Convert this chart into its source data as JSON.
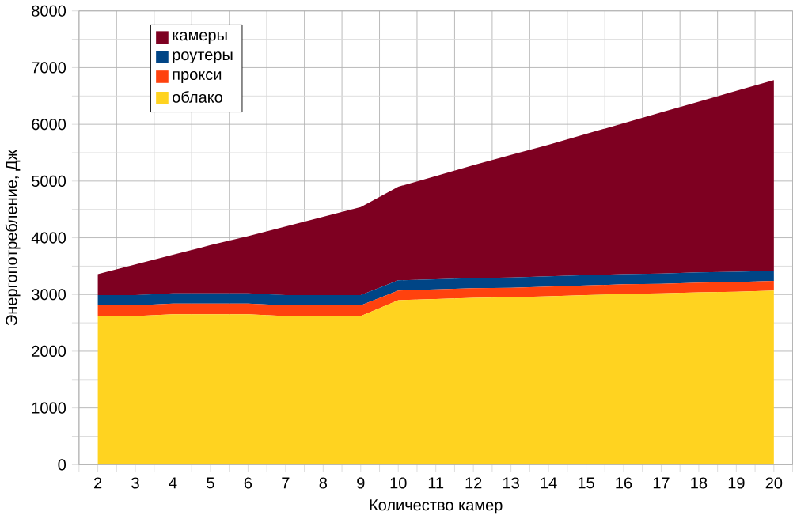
{
  "chart_data": {
    "type": "area",
    "stacked": true,
    "xlabel": "Количество камер",
    "ylabel": "Энергопотребление, Дж",
    "categories": [
      "2",
      "3",
      "4",
      "5",
      "6",
      "7",
      "8",
      "9",
      "10",
      "11",
      "12",
      "13",
      "14",
      "15",
      "16",
      "17",
      "18",
      "19",
      "20"
    ],
    "series": [
      {
        "name": "облако",
        "color": "#ffd320",
        "values": [
          2620,
          2620,
          2650,
          2650,
          2650,
          2620,
          2620,
          2620,
          2900,
          2920,
          2940,
          2950,
          2970,
          2990,
          3010,
          3020,
          3040,
          3050,
          3070
        ]
      },
      {
        "name": "прокси",
        "color": "#ff420e",
        "values": [
          190,
          190,
          190,
          190,
          190,
          190,
          190,
          190,
          170,
          170,
          170,
          170,
          170,
          170,
          170,
          170,
          170,
          170,
          170
        ]
      },
      {
        "name": "роутеры",
        "color": "#004586",
        "values": [
          180,
          180,
          180,
          180,
          180,
          180,
          180,
          180,
          180,
          180,
          180,
          180,
          180,
          180,
          180,
          180,
          180,
          180,
          180
        ]
      },
      {
        "name": "камеры",
        "color": "#7e0021",
        "values": [
          370,
          540,
          680,
          850,
          1010,
          1210,
          1380,
          1550,
          1650,
          1820,
          1990,
          2160,
          2320,
          2490,
          2660,
          2840,
          3010,
          3190,
          3360
        ]
      }
    ],
    "ylim": [
      0,
      8000
    ],
    "yticks": [
      0,
      1000,
      2000,
      3000,
      4000,
      5000,
      6000,
      7000,
      8000
    ],
    "grid": true,
    "legend": "top left"
  }
}
